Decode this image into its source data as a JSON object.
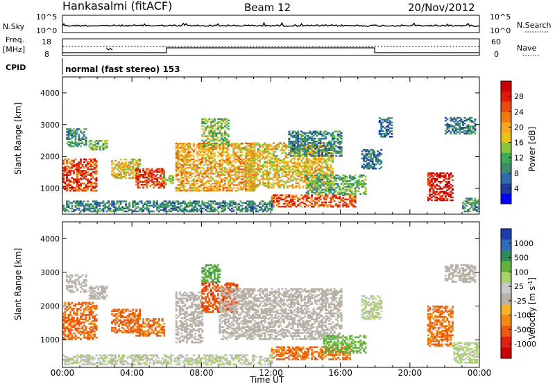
{
  "header": {
    "station": "Hankasalmi (fitACF)",
    "beam": "Beam 12",
    "date": "20/Nov/2012"
  },
  "status_panels": {
    "nsky_label": "N.Sky",
    "nsky_ticks": [
      "10^5",
      "10^0"
    ],
    "nsearch_label": "N.Search",
    "nsearch_ticks": [
      "10^5",
      "10^0"
    ],
    "freq_label_1": "Freq.",
    "freq_label_2": "[MHz]",
    "freq_ticks": [
      "18",
      "8"
    ],
    "nave_label": "Nave",
    "nave_ticks": [
      "60",
      "0"
    ],
    "cpid_label": "CPID",
    "cpid_value": "normal (fast stereo) 153"
  },
  "colors": {
    "power": [
      "#0000ff",
      "#1f3d99",
      "#2e6ca8",
      "#3f8a6a",
      "#3faa55",
      "#8cc63e",
      "#e8c21b",
      "#f5a623",
      "#f07a14",
      "#ea4a0c",
      "#e11b0b",
      "#cc0000"
    ],
    "velocity": [
      "#1a3da8",
      "#2e6cb8",
      "#2e8a56",
      "#5fb33c",
      "#a8d46a",
      "#c8c8c8",
      "#b8b2a8",
      "#f5b326",
      "#f08a14",
      "#ea5a10",
      "#e02010",
      "#cc0000"
    ],
    "ground": "#bdbdbd"
  },
  "chart_data": [
    {
      "type": "heatmap",
      "title": "Power",
      "xlabel": "Time UT",
      "ylabel": "Slant Range [km]",
      "x_ticks": [
        "00:00",
        "04:00",
        "08:00",
        "12:00",
        "16:00",
        "20:00",
        "00:00"
      ],
      "y_ticks": [
        "1000",
        "2000",
        "3000",
        "4000"
      ],
      "ylim": [
        180,
        4500
      ],
      "colorbar_label": "Power [dB]",
      "colorbar_ticks": [
        "4",
        "8",
        "12",
        "16",
        "20",
        "24",
        "28"
      ],
      "colorbar_range": [
        0,
        32
      ],
      "regions": [
        {
          "t": [
            0.0,
            2.0
          ],
          "r": [
            900,
            1900
          ],
          "v": 26
        },
        {
          "t": [
            0.2,
            1.4
          ],
          "r": [
            2300,
            2850
          ],
          "v": 10
        },
        {
          "t": [
            1.5,
            2.6
          ],
          "r": [
            2200,
            2500
          ],
          "v": 12
        },
        {
          "t": [
            2.8,
            4.4
          ],
          "r": [
            1300,
            1900
          ],
          "v": 18
        },
        {
          "t": [
            4.2,
            5.8
          ],
          "r": [
            1000,
            1600
          ],
          "v": 26
        },
        {
          "t": [
            5.8,
            6.3
          ],
          "r": [
            1100,
            1400
          ],
          "v": 14
        },
        {
          "t": [
            6.5,
            11.0
          ],
          "r": [
            900,
            2400
          ],
          "v": 20
        },
        {
          "t": [
            8.0,
            9.5
          ],
          "r": [
            2300,
            3200
          ],
          "v": 14
        },
        {
          "t": [
            10.5,
            15.5
          ],
          "r": [
            1000,
            2400
          ],
          "v": 18
        },
        {
          "t": [
            12.0,
            16.8
          ],
          "r": [
            400,
            800
          ],
          "v": 25
        },
        {
          "t": [
            14.0,
            17.5
          ],
          "r": [
            800,
            1400
          ],
          "v": 12
        },
        {
          "t": [
            13.0,
            16.0
          ],
          "r": [
            2000,
            2800
          ],
          "v": 9
        },
        {
          "t": [
            17.2,
            18.4
          ],
          "r": [
            1600,
            2200
          ],
          "v": 8
        },
        {
          "t": [
            18.2,
            19.0
          ],
          "r": [
            2600,
            3200
          ],
          "v": 7
        },
        {
          "t": [
            21.0,
            22.5
          ],
          "r": [
            600,
            1500
          ],
          "v": 29
        },
        {
          "t": [
            22.0,
            23.8
          ],
          "r": [
            2700,
            3200
          ],
          "v": 8
        },
        {
          "t": [
            23.0,
            24.0
          ],
          "r": [
            250,
            700
          ],
          "v": 10
        },
        {
          "t": [
            0.0,
            12.0
          ],
          "r": [
            250,
            600
          ],
          "v": 9
        }
      ]
    },
    {
      "type": "heatmap",
      "title": "Velocity",
      "xlabel": "Time UT",
      "ylabel": "Slant Range [km]",
      "x_ticks": [
        "00:00",
        "04:00",
        "08:00",
        "12:00",
        "16:00",
        "20:00",
        "00:00"
      ],
      "y_ticks": [
        "1000",
        "2000",
        "3000",
        "4000"
      ],
      "ylim": [
        180,
        4500
      ],
      "colorbar_label": "Velocity [m s^-1]",
      "colorbar_ticks": [
        "1000",
        "500",
        "100",
        "25",
        "-25",
        "-100",
        "-500",
        "-1000"
      ],
      "regions": [
        {
          "t": [
            0.0,
            2.0
          ],
          "r": [
            1000,
            2100
          ],
          "v": -300
        },
        {
          "t": [
            0.2,
            1.4
          ],
          "r": [
            2400,
            2900
          ],
          "v": 0
        },
        {
          "t": [
            1.5,
            2.6
          ],
          "r": [
            2200,
            2600
          ],
          "v": 0
        },
        {
          "t": [
            2.8,
            4.4
          ],
          "r": [
            1200,
            1900
          ],
          "v": -300
        },
        {
          "t": [
            4.2,
            5.8
          ],
          "r": [
            1100,
            1600
          ],
          "v": -250
        },
        {
          "t": [
            6.5,
            8.0
          ],
          "r": [
            900,
            2400
          ],
          "v": 0
        },
        {
          "t": [
            8.0,
            10.0
          ],
          "r": [
            1800,
            2700
          ],
          "v": -400
        },
        {
          "t": [
            8.0,
            9.0
          ],
          "r": [
            2700,
            3200
          ],
          "v": 200
        },
        {
          "t": [
            9.0,
            16.0
          ],
          "r": [
            1000,
            2500
          ],
          "v": 0
        },
        {
          "t": [
            12.0,
            16.5
          ],
          "r": [
            400,
            800
          ],
          "v": -250
        },
        {
          "t": [
            15.0,
            17.5
          ],
          "r": [
            600,
            1100
          ],
          "v": 150
        },
        {
          "t": [
            17.2,
            18.4
          ],
          "r": [
            1600,
            2300
          ],
          "v": 50
        },
        {
          "t": [
            21.0,
            22.5
          ],
          "r": [
            800,
            2000
          ],
          "v": -250
        },
        {
          "t": [
            22.0,
            23.8
          ],
          "r": [
            2700,
            3200
          ],
          "v": 0
        },
        {
          "t": [
            22.5,
            24.0
          ],
          "r": [
            300,
            900
          ],
          "v": 60
        },
        {
          "t": [
            0.0,
            12.0
          ],
          "r": [
            250,
            550
          ],
          "v": 40
        }
      ]
    }
  ]
}
